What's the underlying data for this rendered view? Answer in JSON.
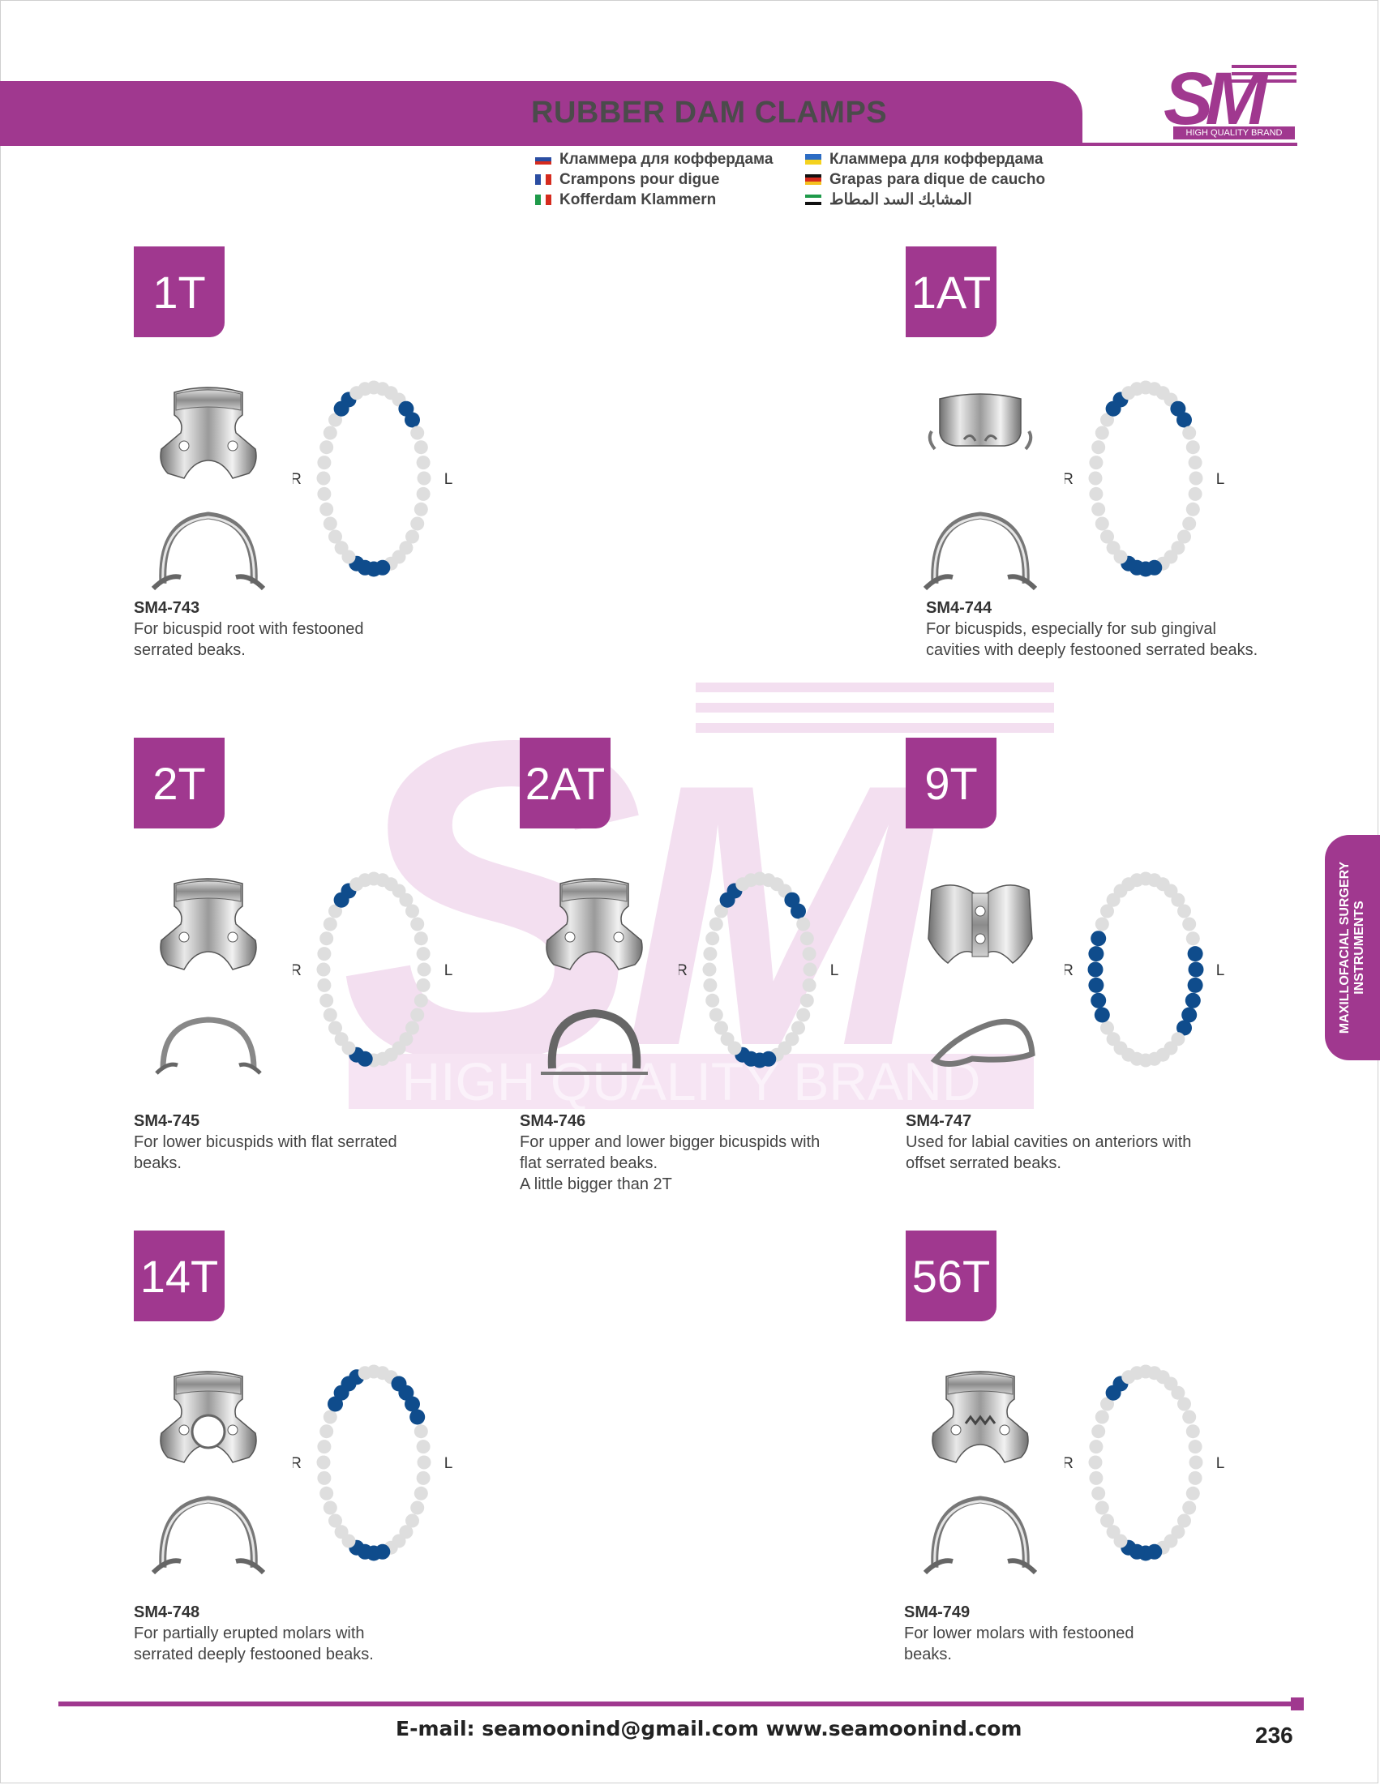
{
  "header": {
    "title": "RUBBER DAM CLAMPS",
    "logo_text": "SM",
    "logo_tagline": "HIGH QUALITY BRAND"
  },
  "languages": [
    {
      "label": "Кламмера для коффердама",
      "flag": "russia-flag-icon",
      "colors": [
        "#ffffff",
        "#2b4ea2",
        "#d52b1e"
      ],
      "orient": "h"
    },
    {
      "label": "Crampons pour digue",
      "flag": "france-flag-icon",
      "colors": [
        "#2b4ea2",
        "#ffffff",
        "#d52b1e"
      ],
      "orient": "v"
    },
    {
      "label": "Kofferdam Klammern",
      "flag": "italy-flag-icon",
      "colors": [
        "#1f9a4a",
        "#ffffff",
        "#d52b1e"
      ],
      "orient": "v"
    },
    {
      "label": "Кламмера для коффердама",
      "flag": "ukraine-flag-icon",
      "colors": [
        "#2c6cc4",
        "#f4d21f"
      ],
      "orient": "h"
    },
    {
      "label": "Grapas para dique de caucho",
      "flag": "germany-flag-icon",
      "colors": [
        "#111111",
        "#d52b1e",
        "#f4c21f"
      ],
      "orient": "h"
    },
    {
      "label": "المشابك السد المطاط",
      "flag": "uae-flag-icon",
      "colors": [
        "#1f9a4a",
        "#ffffff",
        "#111111"
      ],
      "orient": "h"
    }
  ],
  "watermark": {
    "text": "HIGH QUALITY BRAND",
    "letters": "SM"
  },
  "products": [
    {
      "badge": "1T",
      "code": "SM4-743",
      "description": "For bicuspid root with festooned serrated beaks.",
      "marked_teeth": [
        4,
        5,
        17,
        18,
        19,
        20,
        32,
        33
      ]
    },
    {
      "badge": "1AT",
      "code": "SM4-744",
      "description": "For bicuspids, especially for sub gingival cavities with deeply festooned serrated beaks.",
      "marked_teeth": [
        4,
        5,
        17,
        18,
        19,
        20,
        32,
        33
      ]
    },
    {
      "badge": "2T",
      "code": "SM4-745",
      "description": "For lower bicuspids with flat serrated beaks.",
      "marked_teeth": [
        19,
        20,
        32,
        33
      ]
    },
    {
      "badge": "2AT",
      "code": "SM4-746",
      "description": "For upper and lower bigger bicuspids with flat serrated beaks.",
      "description_extra": "A little bigger than 2T",
      "marked_teeth": [
        4,
        5,
        17,
        18,
        19,
        20,
        32,
        33
      ]
    },
    {
      "badge": "9T",
      "code": "SM4-747",
      "description": "Used for labial cavities on anteriors with offset serrated beaks.",
      "marked_teeth": [
        8,
        9,
        10,
        11,
        12,
        13,
        24,
        25,
        26,
        27,
        28,
        29
      ]
    },
    {
      "badge": "14T",
      "code": "SM4-748",
      "description": "For partially erupted molars with serrated deeply festooned beaks.",
      "marked_teeth": [
        3,
        4,
        5,
        6,
        17,
        18,
        19,
        20,
        31,
        32,
        33,
        34
      ]
    },
    {
      "badge": "56T",
      "code": "SM4-749",
      "description": "For lower molars with festooned beaks.",
      "marked_teeth": [
        17,
        18,
        19,
        20,
        32,
        33
      ]
    }
  ],
  "arch_labels": {
    "right": "R",
    "left": "L"
  },
  "colors": {
    "brand": "#a0388f",
    "marked_tooth": "#0f4c8c",
    "tooth": "#dedede"
  },
  "side_tab": {
    "line1": "MAXILLOFACIAL SURGERY",
    "line2": "INSTRUMENTS"
  },
  "footer": {
    "contact": "E-mail: seamoonind@gmail.com   www.seamoonind.com",
    "page_number": "236"
  }
}
